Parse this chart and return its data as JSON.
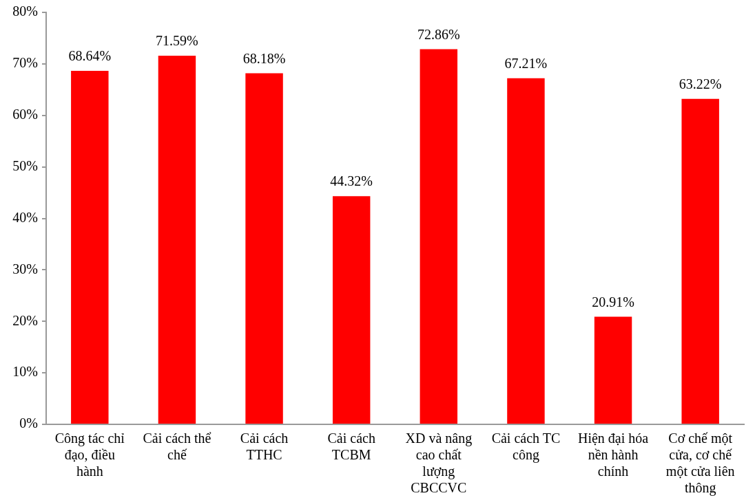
{
  "chart_data": {
    "type": "bar",
    "categories": [
      "Công tác chỉ đạo, điều hành",
      "Cải cách thể chế",
      "Cải cách TTHC",
      "Cải cách TCBM",
      "XD và nâng cao chất lượng CBCCVC",
      "Cải cách TC công",
      "Hiện đại hóa nền hành chính",
      "Cơ chế một cửa, cơ chế một cửa liên thông"
    ],
    "values": [
      68.64,
      71.59,
      68.18,
      44.32,
      72.86,
      67.21,
      20.91,
      63.22
    ],
    "value_labels": [
      "68.64%",
      "71.59%",
      "68.18%",
      "44.32%",
      "72.86%",
      "67.21%",
      "20.91%",
      "63.22%"
    ],
    "color": "#ff0000",
    "ylim": [
      0,
      80
    ],
    "yticks": [
      {
        "value": 0,
        "label": "0%"
      },
      {
        "value": 10,
        "label": "10%"
      },
      {
        "value": 20,
        "label": "20%"
      },
      {
        "value": 30,
        "label": "30%"
      },
      {
        "value": 40,
        "label": "40%"
      },
      {
        "value": 50,
        "label": "50%"
      },
      {
        "value": 60,
        "label": "60%"
      },
      {
        "value": 70,
        "label": "70%"
      },
      {
        "value": 80,
        "label": "80%"
      }
    ],
    "grid": false,
    "legend": false
  }
}
